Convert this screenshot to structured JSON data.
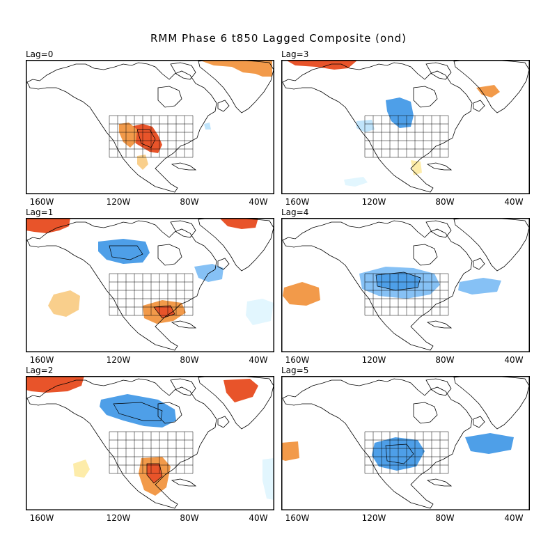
{
  "figure": {
    "title": "RMM Phase 6 t850 Lagged Composite (ond)",
    "x_tick_labels": [
      "160W",
      "120W",
      "80W",
      "40W"
    ]
  },
  "colors": {
    "warm_strong": "#e8542a",
    "warm_medium": "#f29a4a",
    "warm_light": "#f9cf8c",
    "warm_faint": "#fdecaa",
    "cold_strong": "#4e9fe8",
    "cold_medium": "#86c1f5",
    "cold_light": "#c0e4fb",
    "cold_faint": "#e2f6fe",
    "land_outline": "#000000"
  },
  "panels": [
    {
      "label": "Lag=0",
      "anomalies": [
        {
          "sign": "warm",
          "level": 3,
          "region": "south-central US (Southern Plains)"
        },
        {
          "sign": "warm",
          "level": 2,
          "region": "Southwest US / northern Mexico"
        },
        {
          "sign": "warm",
          "level": 1,
          "region": "western Mexico"
        },
        {
          "sign": "warm",
          "level": 2,
          "region": "southern Greenland"
        },
        {
          "sign": "cold",
          "level": 1,
          "region": "Great Lakes"
        }
      ]
    },
    {
      "label": "Lag=3",
      "anomalies": [
        {
          "sign": "cold",
          "level": 2,
          "region": "upper Midwest / Great Lakes"
        },
        {
          "sign": "cold",
          "level": 1,
          "region": "US Northwest"
        },
        {
          "sign": "cold",
          "level": 1,
          "region": "eastern tropical Pacific"
        },
        {
          "sign": "warm",
          "level": 2,
          "region": "southeast Greenland"
        },
        {
          "sign": "warm",
          "level": 3,
          "region": "Arctic north of Alaska"
        },
        {
          "sign": "warm",
          "level": 1,
          "region": "Gulf of Mexico"
        }
      ]
    },
    {
      "label": "Lag=1",
      "anomalies": [
        {
          "sign": "warm",
          "level": 3,
          "region": "Bering Sea"
        },
        {
          "sign": "warm",
          "level": 3,
          "region": "southern Greenland"
        },
        {
          "sign": "cold",
          "level": 2,
          "region": "western Canada"
        },
        {
          "sign": "cold",
          "level": 1,
          "region": "Labrador Sea"
        },
        {
          "sign": "warm",
          "level": 1,
          "region": "subtropical eastern Pacific"
        },
        {
          "sign": "warm",
          "level": 2,
          "region": "southern US"
        },
        {
          "sign": "cold",
          "level": 1,
          "region": "western Atlantic"
        }
      ]
    },
    {
      "label": "Lag=4",
      "anomalies": [
        {
          "sign": "cold",
          "level": 2,
          "region": "northern US / southern Canada"
        },
        {
          "sign": "cold",
          "level": 1,
          "region": "western Atlantic"
        },
        {
          "sign": "warm",
          "level": 2,
          "region": "northeast Pacific"
        }
      ]
    },
    {
      "label": "Lag=2",
      "anomalies": [
        {
          "sign": "warm",
          "level": 3,
          "region": "Bering Sea"
        },
        {
          "sign": "cold",
          "level": 3,
          "region": "western Canada"
        },
        {
          "sign": "warm",
          "level": 3,
          "region": "southern Greenland"
        },
        {
          "sign": "warm",
          "level": 2,
          "region": "Mexico / Texas"
        },
        {
          "sign": "warm",
          "level": 1,
          "region": "subtropical eastern Pacific"
        },
        {
          "sign": "cold",
          "level": 1,
          "region": "central Atlantic"
        }
      ]
    },
    {
      "label": "Lag=5",
      "anomalies": [
        {
          "sign": "cold",
          "level": 2,
          "region": "central US"
        },
        {
          "sign": "cold",
          "level": 2,
          "region": "western Atlantic"
        },
        {
          "sign": "warm",
          "level": 2,
          "region": "northeast Pacific"
        }
      ]
    }
  ]
}
